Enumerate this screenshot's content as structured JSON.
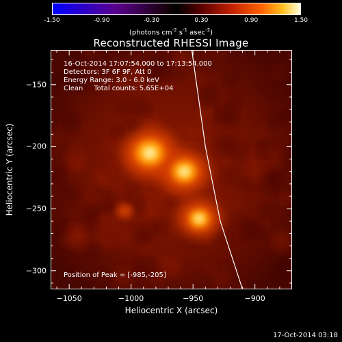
{
  "colorbar": {
    "ticks": [
      "-1.50",
      "-0.90",
      "-0.30",
      "0.30",
      "0.90",
      "1.50"
    ],
    "tick_values": [
      -1.5,
      -0.9,
      -0.3,
      0.3,
      0.9,
      1.5
    ],
    "unit_main": "(photons cm",
    "unit_sup1": "-2",
    "unit_mid1": " s",
    "unit_sup2": "-1",
    "unit_mid2": " asec",
    "unit_sup3": "-2",
    "unit_end": ")"
  },
  "annotations": {
    "time_range": "16-Oct-2014 17:07:54.000 to 17:13:54.000",
    "detectors": "Detectors: 3F 6F 9F, Att 0",
    "energy": "Energy Range: 3.0 - 6.0 keV",
    "clean": "Clean     Total counts: 5.65E+04",
    "peak": "Position of Peak = [-985,-205]"
  },
  "timestamp": "17-Oct-2014 03:18",
  "chart_data": {
    "type": "heatmap",
    "title": "Reconstructed RHESSI Image",
    "xlabel": "Heliocentric X (arcsec)",
    "ylabel": "Heliocentric Y (arcsec)",
    "xlim": [
      -1065,
      -870
    ],
    "ylim": [
      -315,
      -122
    ],
    "x_ticks": [
      -1050,
      -1000,
      -950,
      -900
    ],
    "x_tick_labels": [
      "−1050",
      "−1000",
      "−950",
      "−900"
    ],
    "y_ticks": [
      -150,
      -200,
      -250,
      -300
    ],
    "y_tick_labels": [
      "−150",
      "−200",
      "−250",
      "−300"
    ],
    "colormap": "heat",
    "sources": [
      {
        "x": -985,
        "y": -205,
        "intensity": 1.0
      },
      {
        "x": -957,
        "y": -220,
        "intensity": 0.85
      },
      {
        "x": -945,
        "y": -258,
        "intensity": 0.7
      },
      {
        "x": -1005,
        "y": -252,
        "intensity": 0.3
      }
    ],
    "limb": [
      [
        -951,
        -122
      ],
      [
        -940,
        -200
      ],
      [
        -928,
        -260
      ],
      [
        -910,
        -315
      ]
    ]
  }
}
